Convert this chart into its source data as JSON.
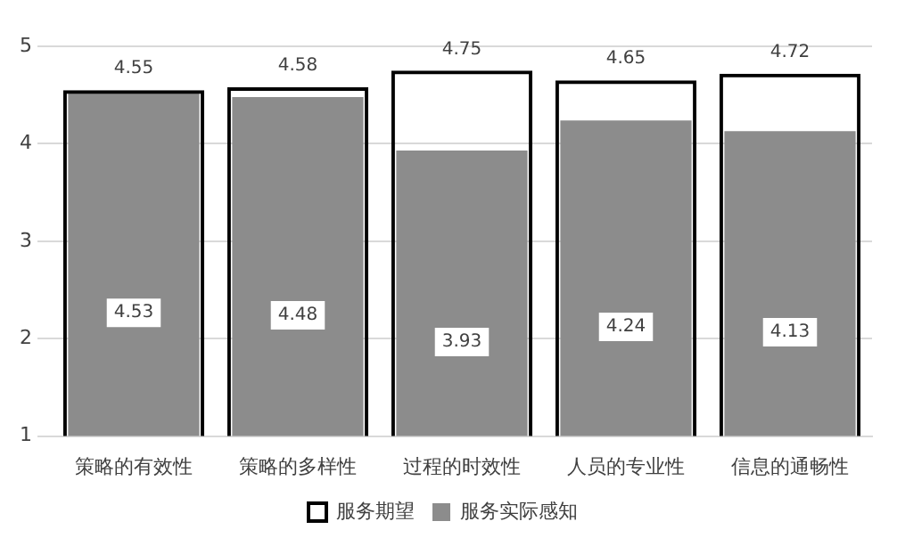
{
  "chart_data": {
    "type": "bar",
    "categories": [
      "策略的有效性",
      "策略的多样性",
      "过程的时效性",
      "人员的专业性",
      "信息的通畅性"
    ],
    "series": [
      {
        "name": "服务期望",
        "color": "#000000",
        "values": [
          4.55,
          4.58,
          4.75,
          4.65,
          4.72
        ]
      },
      {
        "name": "服务实际感知",
        "color": "#8c8c8c",
        "values": [
          4.53,
          4.48,
          3.93,
          4.24,
          4.13
        ]
      }
    ],
    "ylim": [
      1,
      5
    ],
    "yticks": [
      1,
      2,
      3,
      4,
      5
    ],
    "grid": "y",
    "legend": "bottom",
    "data_labels": true
  }
}
